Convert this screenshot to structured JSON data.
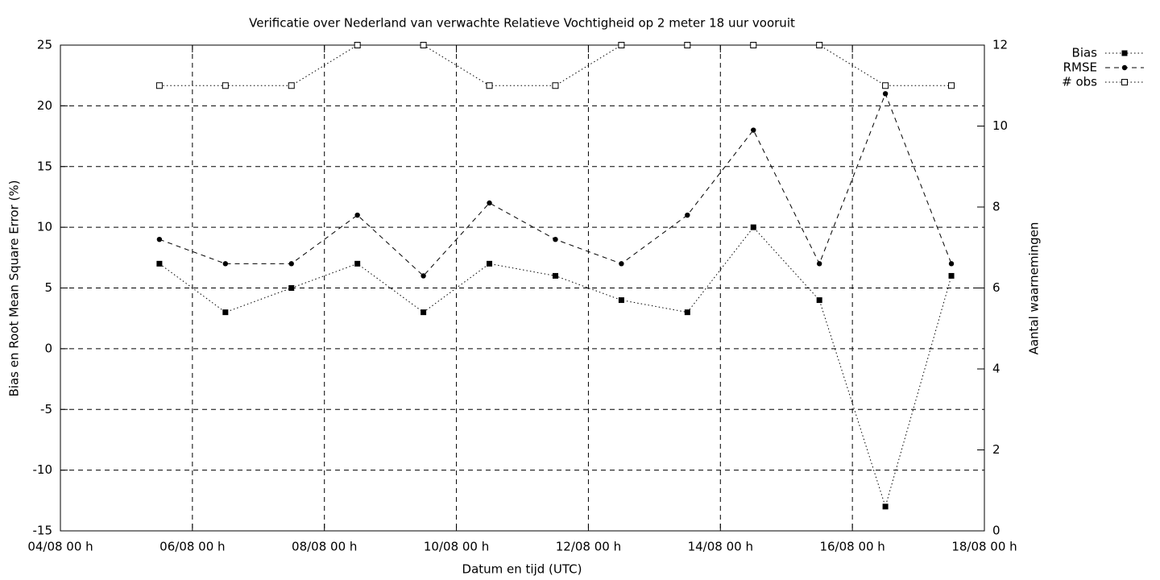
{
  "chart_data": {
    "type": "line",
    "title": "Verificatie over Nederland van verwachte Relatieve Vochtigheid op 2 meter 18 uur vooruit",
    "xlabel": "Datum en tijd (UTC)",
    "ylabel": "Bias en Root Mean Square Error (%)",
    "y2label": "Aantal waarnemingen",
    "x": [
      "05/08 12 h",
      "06/08 12 h",
      "07/08 12 h",
      "08/08 12 h",
      "09/08 12 h",
      "10/08 12 h",
      "11/08 12 h",
      "12/08 12 h",
      "13/08 12 h",
      "14/08 12 h",
      "15/08 12 h",
      "16/08 12 h",
      "17/08 12 h"
    ],
    "xlim": [
      "04/08 00 h",
      "18/08 00 h"
    ],
    "xticks": [
      "04/08 00 h",
      "06/08 00 h",
      "08/08 00 h",
      "10/08 00 h",
      "12/08 00 h",
      "14/08 00 h",
      "16/08 00 h",
      "18/08 00 h"
    ],
    "ylim": [
      -15,
      25
    ],
    "yticks": [
      -15,
      -10,
      -5,
      0,
      5,
      10,
      15,
      20,
      25
    ],
    "y2lim": [
      0,
      12
    ],
    "y2ticks": [
      0,
      2,
      4,
      6,
      8,
      10,
      12
    ],
    "grid": true,
    "legend": "outside-top-right",
    "series": [
      {
        "name": "Bias",
        "color": "#000000",
        "dash": "dotted",
        "marker": "filled-square",
        "values": [
          7,
          3,
          5,
          7,
          3,
          7,
          6,
          4,
          3,
          10,
          4,
          -13,
          6
        ]
      },
      {
        "name": "RMSE",
        "color": "#000000",
        "dash": "dashed",
        "marker": "filled-circle",
        "values": [
          9,
          7,
          7,
          11,
          6,
          12,
          9,
          7,
          11,
          18,
          7,
          21,
          7
        ]
      },
      {
        "name": "# obs",
        "color": "#000000",
        "dash": "dotted",
        "marker": "open-square",
        "axis": "y2",
        "values": [
          11,
          11,
          11,
          12,
          12,
          11,
          11,
          12,
          12,
          12,
          12,
          11,
          11
        ]
      }
    ]
  }
}
